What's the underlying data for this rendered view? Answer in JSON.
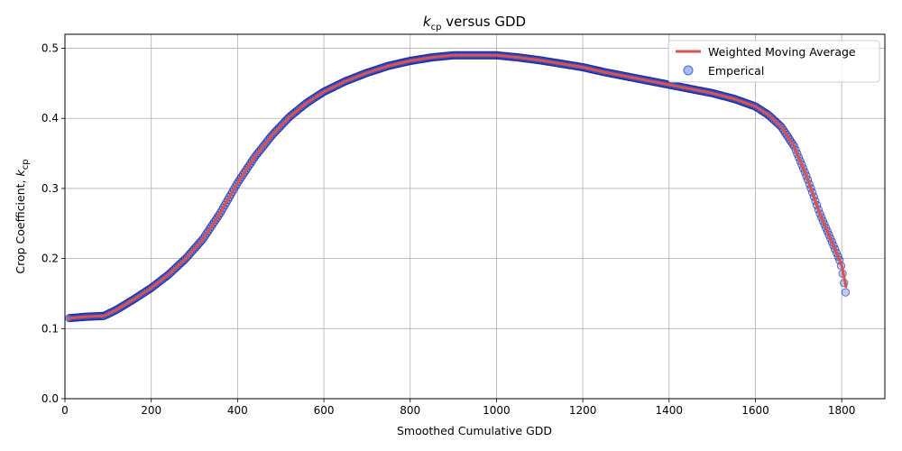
{
  "chart_data": {
    "type": "line",
    "title_var": "k",
    "title_sub": "cp",
    "title_rest": " versus GDD",
    "xlabel": "Smoothed Cumulative GDD",
    "ylabel_main": "Crop Coefficient, ",
    "ylabel_var": "k",
    "ylabel_sub": "cp",
    "xlim": [
      0,
      1900
    ],
    "ylim": [
      0,
      0.52
    ],
    "xticks": [
      0,
      200,
      400,
      600,
      800,
      1000,
      1200,
      1400,
      1600,
      1800
    ],
    "yticks": [
      0.0,
      0.1,
      0.2,
      0.3,
      0.4,
      0.5
    ],
    "xtick_labels": [
      "0",
      "200",
      "400",
      "600",
      "800",
      "1000",
      "1200",
      "1400",
      "1600",
      "1800"
    ],
    "ytick_labels": [
      "0.0",
      "0.1",
      "0.2",
      "0.3",
      "0.4",
      "0.5"
    ],
    "grid": true,
    "legend_position": "top-right",
    "series": [
      {
        "name": "Weighted Moving Average",
        "kind": "line",
        "color": "#d9534f",
        "x": [
          10,
          50,
          90,
          120,
          160,
          200,
          240,
          280,
          320,
          360,
          400,
          440,
          480,
          520,
          560,
          600,
          650,
          700,
          750,
          800,
          850,
          900,
          950,
          1000,
          1050,
          1100,
          1150,
          1200,
          1250,
          1300,
          1350,
          1400,
          1450,
          1500,
          1550,
          1600,
          1630,
          1660,
          1690,
          1720,
          1750,
          1780,
          1800,
          1810
        ],
        "y": [
          0.115,
          0.117,
          0.118,
          0.127,
          0.142,
          0.158,
          0.177,
          0.2,
          0.228,
          0.265,
          0.308,
          0.345,
          0.376,
          0.402,
          0.422,
          0.438,
          0.453,
          0.465,
          0.475,
          0.482,
          0.487,
          0.49,
          0.49,
          0.49,
          0.487,
          0.483,
          0.478,
          0.473,
          0.466,
          0.46,
          0.454,
          0.448,
          0.442,
          0.436,
          0.428,
          0.417,
          0.405,
          0.388,
          0.36,
          0.315,
          0.263,
          0.22,
          0.19,
          0.16
        ]
      },
      {
        "name": "Emperical",
        "kind": "scatter",
        "color": "#4169e1",
        "edge_color": "#000080"
      }
    ]
  }
}
